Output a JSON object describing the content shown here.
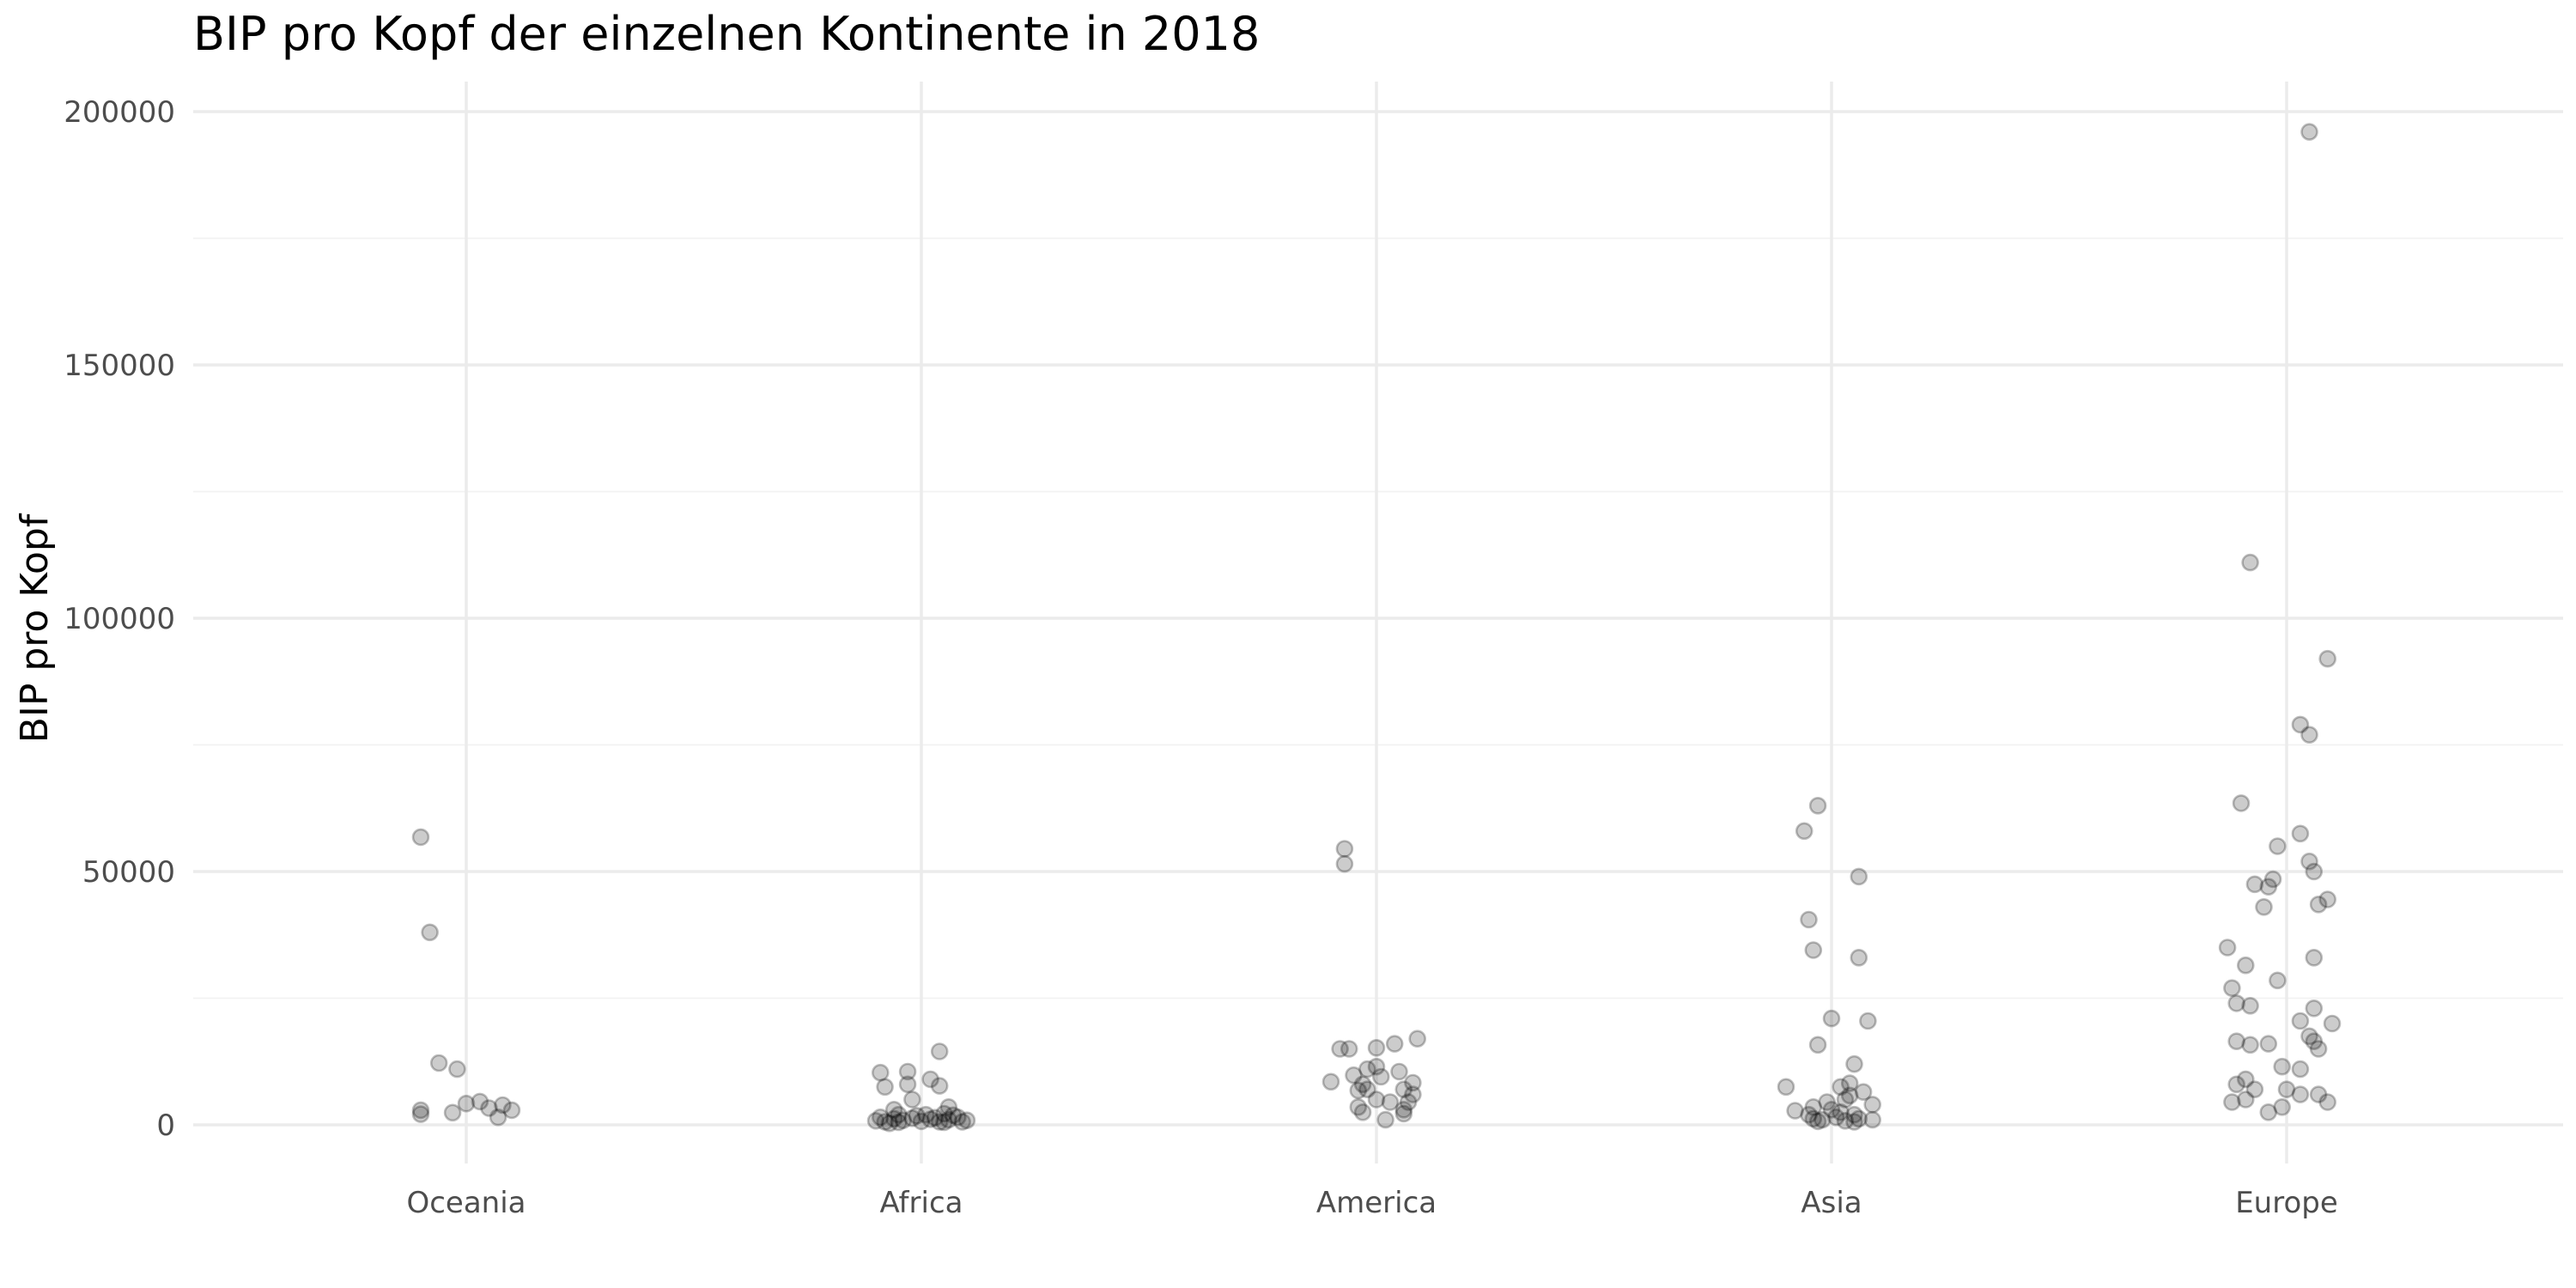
{
  "chart_data": {
    "type": "scatter",
    "title": "BIP pro Kopf der einzelnen Kontinente in 2018",
    "xlabel": "",
    "ylabel": "BIP pro Kopf",
    "ylim": [
      -8000,
      205000
    ],
    "y_ticks": [
      0,
      50000,
      100000,
      150000,
      200000
    ],
    "y_tick_labels": [
      "0",
      "50000",
      "100000",
      "150000",
      "200000"
    ],
    "y_minor_ticks": [
      25000,
      75000,
      125000,
      175000
    ],
    "grid": true,
    "legend": "none",
    "categories": [
      "Oceania",
      "Africa",
      "America",
      "Asia",
      "Europe"
    ],
    "point_color": "#000000",
    "point_alpha": 0.2,
    "series": [
      {
        "category": "Oceania",
        "points": [
          {
            "jitter": -0.1,
            "y": 56800
          },
          {
            "jitter": -0.08,
            "y": 38000
          },
          {
            "jitter": -0.06,
            "y": 12200
          },
          {
            "jitter": -0.02,
            "y": 11000
          },
          {
            "jitter": 0.0,
            "y": 4200
          },
          {
            "jitter": 0.03,
            "y": 4600
          },
          {
            "jitter": 0.05,
            "y": 3300
          },
          {
            "jitter": 0.08,
            "y": 3900
          },
          {
            "jitter": 0.1,
            "y": 2900
          },
          {
            "jitter": -0.1,
            "y": 2100
          },
          {
            "jitter": -0.1,
            "y": 2900
          },
          {
            "jitter": -0.03,
            "y": 2400
          },
          {
            "jitter": 0.07,
            "y": 1500
          }
        ]
      },
      {
        "category": "Africa",
        "points": [
          {
            "jitter": 0.04,
            "y": 14500
          },
          {
            "jitter": -0.09,
            "y": 10300
          },
          {
            "jitter": -0.03,
            "y": 10500
          },
          {
            "jitter": 0.02,
            "y": 9000
          },
          {
            "jitter": -0.08,
            "y": 7500
          },
          {
            "jitter": -0.03,
            "y": 8000
          },
          {
            "jitter": 0.04,
            "y": 7700
          },
          {
            "jitter": -0.02,
            "y": 5000
          },
          {
            "jitter": 0.06,
            "y": 3500
          },
          {
            "jitter": -0.06,
            "y": 3000
          },
          {
            "jitter": -0.05,
            "y": 2000
          },
          {
            "jitter": -0.01,
            "y": 1800
          },
          {
            "jitter": 0.01,
            "y": 2000
          },
          {
            "jitter": 0.05,
            "y": 2200
          },
          {
            "jitter": 0.07,
            "y": 1900
          },
          {
            "jitter": -0.1,
            "y": 800
          },
          {
            "jitter": -0.08,
            "y": 600
          },
          {
            "jitter": -0.06,
            "y": 1200
          },
          {
            "jitter": -0.04,
            "y": 900
          },
          {
            "jitter": -0.02,
            "y": 1300
          },
          {
            "jitter": 0.0,
            "y": 700
          },
          {
            "jitter": 0.02,
            "y": 1100
          },
          {
            "jitter": 0.04,
            "y": 600
          },
          {
            "jitter": 0.06,
            "y": 1000
          },
          {
            "jitter": 0.08,
            "y": 1500
          },
          {
            "jitter": 0.09,
            "y": 600
          },
          {
            "jitter": 0.1,
            "y": 900
          },
          {
            "jitter": -0.09,
            "y": 1500
          },
          {
            "jitter": -0.05,
            "y": 500
          },
          {
            "jitter": 0.03,
            "y": 1400
          },
          {
            "jitter": -0.07,
            "y": 300
          },
          {
            "jitter": 0.05,
            "y": 500
          }
        ]
      },
      {
        "category": "America",
        "points": [
          {
            "jitter": -0.07,
            "y": 54500
          },
          {
            "jitter": -0.07,
            "y": 51500
          },
          {
            "jitter": 0.09,
            "y": 17000
          },
          {
            "jitter": 0.04,
            "y": 16000
          },
          {
            "jitter": -0.08,
            "y": 15000
          },
          {
            "jitter": -0.06,
            "y": 15000
          },
          {
            "jitter": 0.0,
            "y": 15200
          },
          {
            "jitter": 0.0,
            "y": 11500
          },
          {
            "jitter": -0.02,
            "y": 11000
          },
          {
            "jitter": 0.05,
            "y": 10500
          },
          {
            "jitter": -0.05,
            "y": 9800
          },
          {
            "jitter": 0.01,
            "y": 9500
          },
          {
            "jitter": -0.1,
            "y": 8500
          },
          {
            "jitter": -0.03,
            "y": 8000
          },
          {
            "jitter": -0.02,
            "y": 7000
          },
          {
            "jitter": 0.08,
            "y": 8300
          },
          {
            "jitter": -0.04,
            "y": 6800
          },
          {
            "jitter": 0.06,
            "y": 7000
          },
          {
            "jitter": 0.08,
            "y": 6000
          },
          {
            "jitter": 0.0,
            "y": 5000
          },
          {
            "jitter": 0.03,
            "y": 4500
          },
          {
            "jitter": 0.07,
            "y": 4500
          },
          {
            "jitter": -0.04,
            "y": 3500
          },
          {
            "jitter": -0.03,
            "y": 2500
          },
          {
            "jitter": 0.06,
            "y": 3000
          },
          {
            "jitter": 0.06,
            "y": 2200
          },
          {
            "jitter": 0.02,
            "y": 1000
          }
        ]
      },
      {
        "category": "Asia",
        "points": [
          {
            "jitter": -0.03,
            "y": 63000
          },
          {
            "jitter": -0.06,
            "y": 58000
          },
          {
            "jitter": 0.06,
            "y": 49000
          },
          {
            "jitter": -0.05,
            "y": 40500
          },
          {
            "jitter": -0.04,
            "y": 34500
          },
          {
            "jitter": 0.06,
            "y": 33000
          },
          {
            "jitter": 0.0,
            "y": 21000
          },
          {
            "jitter": 0.08,
            "y": 20500
          },
          {
            "jitter": -0.03,
            "y": 15800
          },
          {
            "jitter": 0.05,
            "y": 12000
          },
          {
            "jitter": 0.04,
            "y": 8200
          },
          {
            "jitter": 0.02,
            "y": 7500
          },
          {
            "jitter": -0.1,
            "y": 7500
          },
          {
            "jitter": 0.07,
            "y": 6500
          },
          {
            "jitter": 0.04,
            "y": 5800
          },
          {
            "jitter": 0.03,
            "y": 5000
          },
          {
            "jitter": -0.01,
            "y": 4500
          },
          {
            "jitter": 0.09,
            "y": 4000
          },
          {
            "jitter": -0.04,
            "y": 3500
          },
          {
            "jitter": 0.0,
            "y": 3000
          },
          {
            "jitter": -0.08,
            "y": 2800
          },
          {
            "jitter": 0.02,
            "y": 2500
          },
          {
            "jitter": 0.05,
            "y": 2000
          },
          {
            "jitter": -0.05,
            "y": 2000
          },
          {
            "jitter": -0.04,
            "y": 1200
          },
          {
            "jitter": -0.02,
            "y": 1000
          },
          {
            "jitter": 0.01,
            "y": 1500
          },
          {
            "jitter": 0.03,
            "y": 800
          },
          {
            "jitter": 0.06,
            "y": 1200
          },
          {
            "jitter": 0.09,
            "y": 1000
          },
          {
            "jitter": -0.03,
            "y": 700
          },
          {
            "jitter": 0.05,
            "y": 600
          }
        ]
      },
      {
        "category": "Europe",
        "points": [
          {
            "jitter": 0.05,
            "y": 196000
          },
          {
            "jitter": -0.08,
            "y": 111000
          },
          {
            "jitter": 0.09,
            "y": 92000
          },
          {
            "jitter": 0.03,
            "y": 79000
          },
          {
            "jitter": 0.05,
            "y": 77000
          },
          {
            "jitter": -0.1,
            "y": 63500
          },
          {
            "jitter": 0.03,
            "y": 57500
          },
          {
            "jitter": -0.02,
            "y": 55000
          },
          {
            "jitter": 0.05,
            "y": 52000
          },
          {
            "jitter": 0.06,
            "y": 50000
          },
          {
            "jitter": -0.03,
            "y": 48500
          },
          {
            "jitter": -0.04,
            "y": 47000
          },
          {
            "jitter": -0.07,
            "y": 47500
          },
          {
            "jitter": 0.09,
            "y": 44500
          },
          {
            "jitter": 0.07,
            "y": 43500
          },
          {
            "jitter": -0.05,
            "y": 43000
          },
          {
            "jitter": -0.13,
            "y": 35000
          },
          {
            "jitter": 0.06,
            "y": 33000
          },
          {
            "jitter": -0.09,
            "y": 31500
          },
          {
            "jitter": -0.02,
            "y": 28500
          },
          {
            "jitter": -0.12,
            "y": 27000
          },
          {
            "jitter": -0.11,
            "y": 24000
          },
          {
            "jitter": -0.08,
            "y": 23500
          },
          {
            "jitter": 0.06,
            "y": 23000
          },
          {
            "jitter": 0.03,
            "y": 20500
          },
          {
            "jitter": 0.1,
            "y": 20000
          },
          {
            "jitter": 0.05,
            "y": 17500
          },
          {
            "jitter": 0.06,
            "y": 16500
          },
          {
            "jitter": -0.11,
            "y": 16500
          },
          {
            "jitter": -0.04,
            "y": 16000
          },
          {
            "jitter": -0.08,
            "y": 15800
          },
          {
            "jitter": 0.07,
            "y": 15000
          },
          {
            "jitter": -0.01,
            "y": 11500
          },
          {
            "jitter": 0.03,
            "y": 11000
          },
          {
            "jitter": -0.09,
            "y": 9000
          },
          {
            "jitter": -0.11,
            "y": 8000
          },
          {
            "jitter": -0.07,
            "y": 7000
          },
          {
            "jitter": 0.0,
            "y": 7000
          },
          {
            "jitter": 0.03,
            "y": 6000
          },
          {
            "jitter": 0.07,
            "y": 6000
          },
          {
            "jitter": -0.12,
            "y": 4500
          },
          {
            "jitter": -0.09,
            "y": 5000
          },
          {
            "jitter": 0.09,
            "y": 4500
          },
          {
            "jitter": -0.01,
            "y": 3500
          },
          {
            "jitter": -0.04,
            "y": 2500
          }
        ]
      }
    ]
  }
}
